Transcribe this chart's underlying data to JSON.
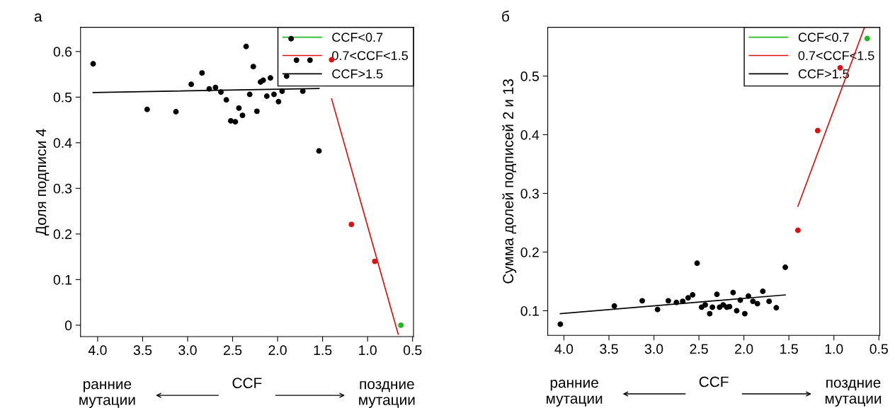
{
  "chart_data": [
    {
      "type": "scatter",
      "title": "а",
      "ylabel": "Доля подписи 4",
      "xlabel": "CCF",
      "annotations": [
        "ранние\nмутации",
        "поздние\nмутации"
      ],
      "xlim": [
        4.19,
        0.49
      ],
      "xticks": [
        {
          "value": 4.0,
          "label": "4.0"
        },
        3.5,
        {
          "value": 3.0,
          "label": "3.0"
        },
        2.5,
        {
          "value": 2.0,
          "label": "2.0"
        },
        1.5,
        {
          "value": 1.0,
          "label": "1.0"
        },
        0.5
      ],
      "ylim": [
        -0.025,
        0.653
      ],
      "yticks": [
        0,
        0.1,
        0.2,
        0.3,
        0.4,
        0.5,
        0.6
      ],
      "grid": false,
      "legend": "top right",
      "series": [
        {
          "name": "CCF<0.7",
          "color": "#22bb22",
          "x": [
            0.63
          ],
          "values": [
            0.0
          ]
        },
        {
          "name": "0.7<CCF<1.5",
          "color": "#dd1111",
          "x": [
            1.4,
            1.18,
            0.92
          ],
          "values": [
            0.582,
            0.221,
            0.14
          ]
        },
        {
          "name": "CCF>1.5",
          "color": "#000000",
          "x": [
            4.05,
            3.45,
            3.13,
            2.96,
            2.84,
            2.76,
            2.69,
            2.63,
            2.57,
            2.52,
            2.47,
            2.43,
            2.39,
            2.35,
            2.31,
            2.27,
            2.23,
            2.19,
            2.16,
            2.12,
            2.08,
            2.04,
            1.99,
            1.95,
            1.9,
            1.85,
            1.79,
            1.72,
            1.64,
            1.54
          ],
          "values": [
            0.573,
            0.473,
            0.468,
            0.528,
            0.553,
            0.518,
            0.521,
            0.511,
            0.494,
            0.448,
            0.446,
            0.476,
            0.46,
            0.611,
            0.506,
            0.567,
            0.469,
            0.533,
            0.537,
            0.502,
            0.542,
            0.506,
            0.49,
            0.513,
            0.546,
            0.628,
            0.581,
            0.513,
            0.581,
            0.382
          ]
        },
        {
          "type": "line",
          "color": "#dd1111",
          "x": [
            1.4,
            0.66
          ],
          "values": [
            0.496,
            -0.02
          ]
        },
        {
          "type": "line",
          "color": "#000000",
          "x": [
            4.05,
            1.54
          ],
          "values": [
            0.51,
            0.519
          ]
        }
      ]
    },
    {
      "type": "scatter",
      "title": "б",
      "ylabel": "Сумма долей подписей 2 и 13",
      "xlabel": "CCF",
      "annotations": [
        "ранние\nмутации",
        "поздние\nмутации"
      ],
      "xlim": [
        4.18,
        0.49
      ],
      "xticks": [
        {
          "value": 4.0,
          "label": "4.0"
        },
        3.5,
        {
          "value": 3.0,
          "label": "3.0"
        },
        2.5,
        {
          "value": 2.0,
          "label": "2.0"
        },
        1.5,
        {
          "value": 1.0,
          "label": "1.0"
        },
        0.5
      ],
      "ylim": [
        0.058,
        0.583
      ],
      "yticks": [
        0.1,
        0.2,
        0.3,
        0.4,
        0.5
      ],
      "grid": false,
      "legend": "top right",
      "series": [
        {
          "name": "CCF<0.7",
          "color": "#22bb22",
          "x": [
            0.63
          ],
          "values": [
            0.564
          ]
        },
        {
          "name": "0.7<CCF<1.5",
          "color": "#dd1111",
          "x": [
            1.4,
            1.18,
            0.93
          ],
          "values": [
            0.237,
            0.407,
            0.514
          ]
        },
        {
          "name": "CCF>1.5",
          "color": "#000000",
          "x": [
            4.04,
            3.44,
            3.13,
            2.96,
            2.84,
            2.75,
            2.68,
            2.62,
            2.57,
            2.52,
            2.47,
            2.43,
            2.38,
            2.35,
            2.3,
            2.27,
            2.23,
            2.19,
            2.16,
            2.12,
            2.08,
            2.04,
            1.99,
            1.95,
            1.9,
            1.85,
            1.79,
            1.72,
            1.64,
            1.54
          ],
          "values": [
            0.077,
            0.108,
            0.117,
            0.102,
            0.117,
            0.114,
            0.116,
            0.122,
            0.127,
            0.181,
            0.106,
            0.11,
            0.095,
            0.106,
            0.128,
            0.106,
            0.11,
            0.106,
            0.107,
            0.131,
            0.1,
            0.118,
            0.095,
            0.125,
            0.116,
            0.112,
            0.133,
            0.116,
            0.105,
            0.174
          ]
        },
        {
          "type": "line",
          "color": "#dd1111",
          "x": [
            1.4,
            0.66
          ],
          "values": [
            0.278,
            0.583
          ]
        },
        {
          "type": "line",
          "color": "#000000",
          "x": [
            4.04,
            1.54
          ],
          "values": [
            0.095,
            0.127
          ]
        }
      ]
    }
  ]
}
